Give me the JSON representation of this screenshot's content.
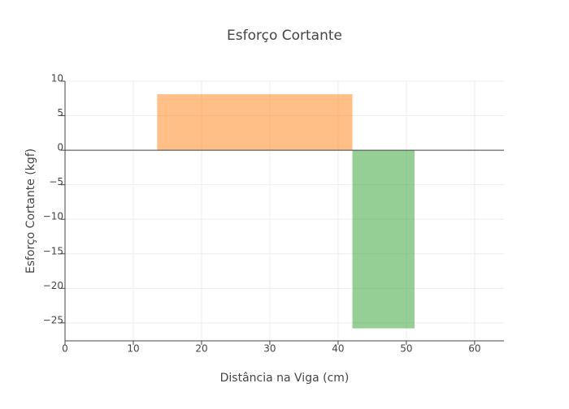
{
  "chart_data": {
    "type": "area",
    "title": "Esforço Cortante",
    "x_label": "Distância na Viga (cm)",
    "y_label": "Esforço Cortante (kgf)",
    "series": [
      {
        "x": [
          13.5,
          42.1
        ],
        "values": [
          8.1,
          8.1
        ],
        "color": "#ff7f0e"
      },
      {
        "x": [
          42.1,
          51.2
        ],
        "values": [
          -25.8,
          -25.8
        ],
        "color": "#2ca02c"
      }
    ],
    "xlim": [
      0,
      64.3
    ],
    "xticks": [
      0,
      10,
      20,
      30,
      40,
      50,
      60
    ],
    "ylim": [
      -27.6,
      10
    ],
    "yticks": [
      10,
      5,
      0,
      {
        "value": -5,
        "label": "−5"
      },
      {
        "value": -10,
        "label": "−10"
      },
      {
        "value": -15,
        "label": "−15"
      },
      {
        "value": -20,
        "label": "−20"
      },
      {
        "value": -25,
        "label": "−25"
      }
    ],
    "grid": true
  }
}
